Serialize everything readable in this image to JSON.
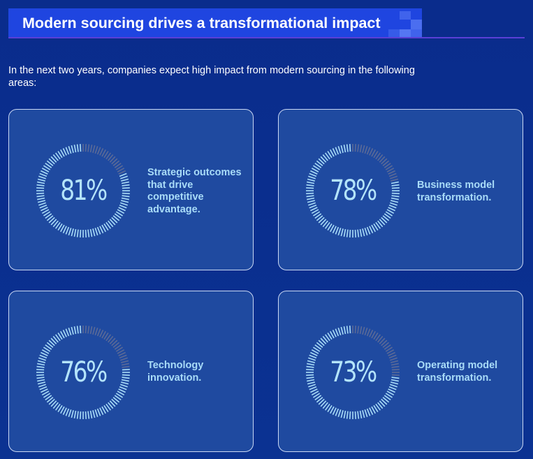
{
  "title": "Modern sourcing drives a transformational impact",
  "intro": "In the next two years, companies expect high impact from modern sourcing in the following areas:",
  "colors": {
    "background": "#0a2f8f",
    "banner": "#1f45e0",
    "card": "#1f4aa0",
    "card_border": "#c9d7f3",
    "ring_filled": "#a9dcf8",
    "ring_empty": "#5b6a97",
    "label": "#a9dcf8"
  },
  "chart_data": [
    {
      "type": "pie",
      "value": 81,
      "value_label": "81%",
      "label": "Strategic outcomes that drive competitive advantage."
    },
    {
      "type": "pie",
      "value": 78,
      "value_label": "78%",
      "label": "Business model transformation."
    },
    {
      "type": "pie",
      "value": 76,
      "value_label": "76%",
      "label": "Technology innovation."
    },
    {
      "type": "pie",
      "value": 73,
      "value_label": "73%",
      "label": "Operating model transformation."
    }
  ]
}
